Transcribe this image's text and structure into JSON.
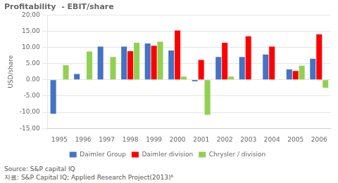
{
  "chart_data": {
    "type": "bar",
    "title": "Profitability  - EBIT/share",
    "ylabel": "USD/share",
    "annotations": [
      "Source: S&P capital IQ",
      "자료: S&P Capital IQ; Applied Research Project(2013)⁶"
    ],
    "categories": [
      "1995",
      "1996",
      "1997",
      "1998",
      "1999",
      "2000",
      "2001",
      "2002",
      "2003",
      "2004",
      "2005",
      "2006"
    ],
    "series": [
      {
        "name": "Daimler Group",
        "color": "#4472C4",
        "values": [
          -10.5,
          1.8,
          10.2,
          10.2,
          11.2,
          9.0,
          -0.5,
          7.0,
          7.0,
          7.8,
          3.2,
          6.5
        ]
      },
      {
        "name": "Daimler division",
        "color": "#FF0000",
        "values": [
          null,
          null,
          null,
          8.8,
          10.5,
          15.2,
          6.1,
          11.4,
          13.4,
          10.2,
          2.7,
          14.0
        ]
      },
      {
        "name": "Chrysler / division",
        "color": "#92D050",
        "values": [
          4.5,
          8.7,
          7.0,
          11.4,
          11.7,
          1.0,
          -10.8,
          1.0,
          null,
          null,
          4.3,
          -2.5
        ]
      }
    ],
    "ylim": [
      -15.0,
      20.0
    ],
    "yticks": [
      {
        "value": -15.0,
        "label": "-15.00"
      },
      {
        "value": -10.0,
        "label": "-10.00"
      },
      {
        "value": -5.0,
        "label": "-5.00"
      },
      {
        "value": 0.0,
        "label": "0.00"
      },
      {
        "value": 5.0,
        "label": "5.00"
      },
      {
        "value": 10.0,
        "label": "10.00"
      },
      {
        "value": 15.0,
        "label": "15.00"
      },
      {
        "value": 20.0,
        "label": "20.00"
      }
    ],
    "grid": true,
    "legend": "bottom"
  }
}
